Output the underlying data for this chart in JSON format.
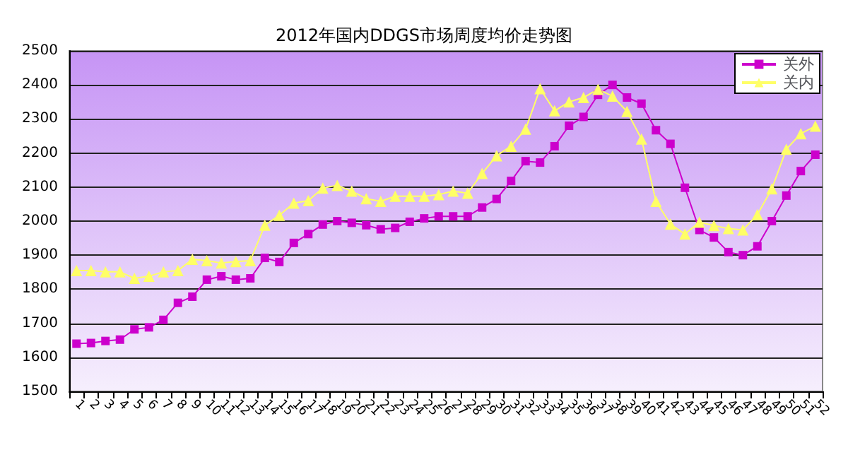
{
  "chart_data": {
    "type": "line",
    "title": "2012年国内DDGS市场周度均价走势图",
    "categories": [
      "1",
      "2",
      "3",
      "4",
      "5",
      "6",
      "7",
      "8",
      "9",
      "10",
      "11",
      "12",
      "13",
      "14",
      "15",
      "16",
      "17",
      "18",
      "19",
      "20",
      "21",
      "22",
      "23",
      "24",
      "25",
      "26",
      "27",
      "28",
      "29",
      "30",
      "31",
      "32",
      "33",
      "34",
      "35",
      "36",
      "37",
      "38",
      "39",
      "40",
      "41",
      "42",
      "43",
      "44",
      "45",
      "46",
      "47",
      "48",
      "49",
      "50",
      "51",
      "52"
    ],
    "series": [
      {
        "name": "关外",
        "color": "#cc00cc",
        "marker": "square",
        "values": [
          1640,
          1642,
          1648,
          1652,
          1682,
          1688,
          1710,
          1760,
          1778,
          1828,
          1838,
          1828,
          1832,
          1892,
          1880,
          1936,
          1962,
          1990,
          2000,
          1995,
          1988,
          1976,
          1980,
          1998,
          2008,
          2014,
          2014,
          2014,
          2040,
          2065,
          2118,
          2176,
          2172,
          2220,
          2280,
          2306,
          2371,
          2400,
          2363,
          2345,
          2267,
          2227,
          2098,
          1974,
          1952,
          1909,
          1900,
          1926,
          2000,
          2075,
          2147,
          2195
        ]
      },
      {
        "name": "关内",
        "color": "#ffff66",
        "marker": "triangle",
        "values": [
          1855,
          1855,
          1851,
          1851,
          1832,
          1838,
          1851,
          1855,
          1888,
          1884,
          1877,
          1881,
          1884,
          1988,
          2017,
          2053,
          2060,
          2097,
          2105,
          2088,
          2066,
          2058,
          2073,
          2073,
          2073,
          2078,
          2088,
          2082,
          2140,
          2192,
          2220,
          2270,
          2389,
          2324,
          2350,
          2363,
          2387,
          2367,
          2322,
          2241,
          2058,
          1991,
          1962,
          1997,
          1987,
          1978,
          1974,
          2019,
          2095,
          2211,
          2257,
          2279
        ]
      }
    ],
    "ylim": [
      1500,
      2500
    ],
    "yticks": [
      1500,
      1600,
      1700,
      1800,
      1900,
      2000,
      2100,
      2200,
      2300,
      2400,
      2500
    ],
    "grid": "y",
    "legend": "top right",
    "line_style": "solid"
  }
}
